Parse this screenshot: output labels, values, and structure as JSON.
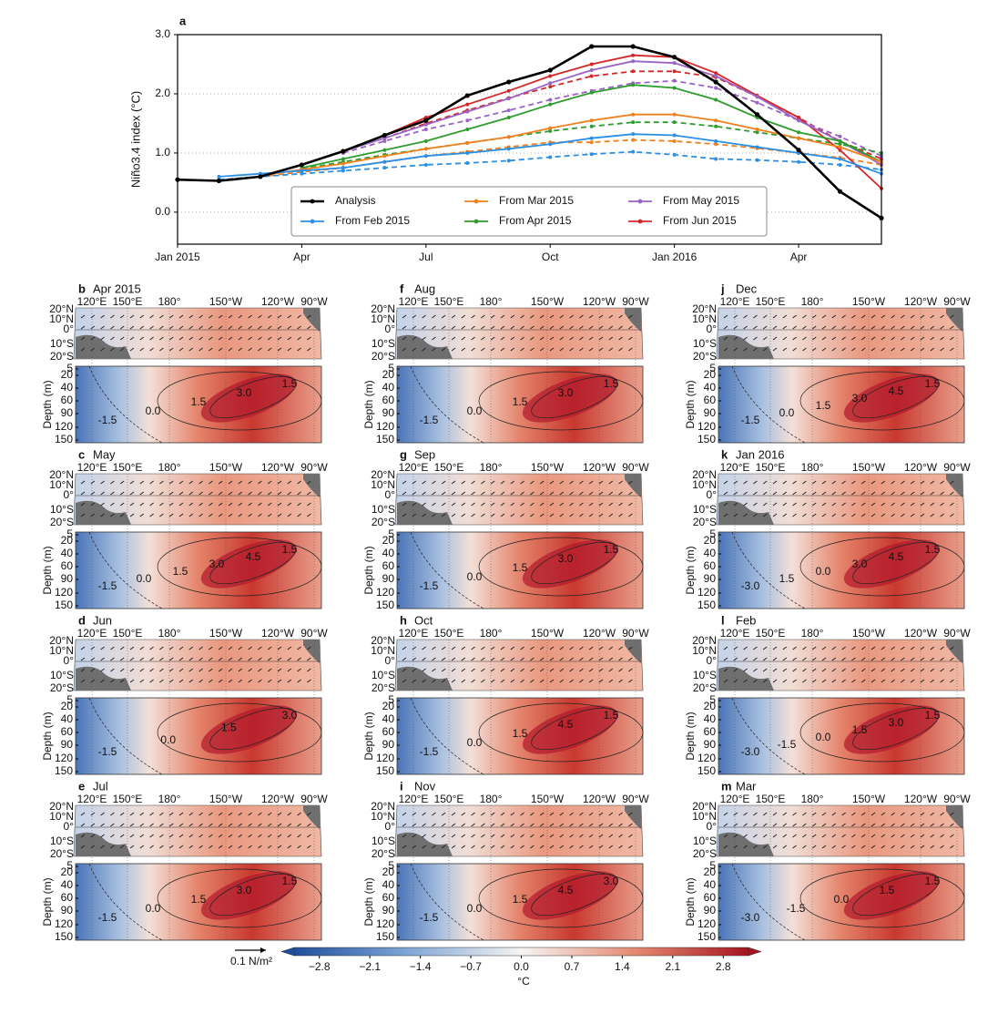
{
  "chart_data": {
    "type": "line",
    "panel_label": "a",
    "ylabel": "Niño3.4 index (°C)",
    "categories": [
      "Jan 2015",
      null,
      null,
      "Apr",
      null,
      null,
      "Jul",
      null,
      null,
      "Oct",
      null,
      null,
      "Jan 2016",
      null,
      null,
      "Apr",
      null,
      null
    ],
    "ylim": [
      -0.54,
      3.0
    ],
    "yticks": [
      {
        "value": 0,
        "label": "0.0"
      },
      {
        "value": 1,
        "label": "1.0"
      },
      {
        "value": 2,
        "label": "2.0"
      },
      {
        "value": 3,
        "label": "3.0"
      }
    ],
    "grid": true,
    "series": [
      {
        "name": "Analysis",
        "color": "#000000",
        "values": [
          0.55,
          0.53,
          0.6,
          0.8,
          1.03,
          1.3,
          1.55,
          1.97,
          2.2,
          2.4,
          2.8,
          2.8,
          2.62,
          2.2,
          1.65,
          1.05,
          0.35,
          -0.1
        ]
      },
      {
        "name": "From Feb 2015",
        "color": "#2b8fe6",
        "values": [
          null,
          0.6,
          0.65,
          0.7,
          0.75,
          0.85,
          0.95,
          1.0,
          1.07,
          1.15,
          1.25,
          1.32,
          1.3,
          1.2,
          1.1,
          1.0,
          0.9,
          0.65
        ]
      },
      {
        "name": "From Mar 2015",
        "color": "#f07f1c",
        "values": [
          null,
          null,
          0.62,
          0.72,
          0.82,
          0.95,
          1.07,
          1.17,
          1.27,
          1.42,
          1.55,
          1.65,
          1.65,
          1.55,
          1.4,
          1.25,
          1.1,
          0.85
        ]
      },
      {
        "name": "From Apr 2015",
        "color": "#2e9c2e",
        "values": [
          null,
          null,
          null,
          0.75,
          0.9,
          1.05,
          1.2,
          1.4,
          1.6,
          1.82,
          2.02,
          2.15,
          2.1,
          1.9,
          1.6,
          1.35,
          1.2,
          0.85
        ]
      },
      {
        "name": "From May 2015",
        "color": "#9a63c6",
        "values": [
          null,
          null,
          null,
          null,
          1.03,
          1.25,
          1.48,
          1.7,
          1.92,
          2.18,
          2.4,
          2.55,
          2.52,
          2.3,
          1.95,
          1.55,
          1.2,
          0.8
        ]
      },
      {
        "name": "From Jun 2015",
        "color": "#d62728",
        "values": [
          null,
          null,
          null,
          null,
          null,
          1.3,
          1.6,
          1.82,
          2.05,
          2.3,
          2.5,
          2.65,
          2.62,
          2.35,
          1.97,
          1.6,
          1.05,
          0.4
        ]
      },
      {
        "color": "#2b8fe6",
        "dashed": true,
        "values": [
          null,
          0.55,
          0.6,
          0.65,
          0.7,
          0.75,
          0.8,
          0.83,
          0.87,
          0.93,
          0.98,
          1.02,
          0.97,
          0.9,
          0.88,
          0.85,
          0.8,
          0.72
        ]
      },
      {
        "color": "#f07f1c",
        "dashed": true,
        "values": [
          null,
          null,
          0.6,
          0.68,
          0.75,
          0.85,
          0.95,
          1.02,
          1.1,
          1.18,
          1.18,
          1.22,
          1.2,
          1.15,
          1.08,
          1.0,
          0.92,
          0.8
        ]
      },
      {
        "color": "#2e9c2e",
        "dashed": true,
        "values": [
          null,
          null,
          null,
          0.73,
          0.85,
          0.97,
          1.07,
          1.17,
          1.27,
          1.37,
          1.45,
          1.52,
          1.52,
          1.45,
          1.35,
          1.25,
          1.15,
          1.0
        ]
      },
      {
        "color": "#9a63c6",
        "dashed": true,
        "values": [
          null,
          null,
          null,
          null,
          1.0,
          1.2,
          1.4,
          1.55,
          1.72,
          1.9,
          2.05,
          2.18,
          2.22,
          2.1,
          1.85,
          1.55,
          1.28,
          0.95
        ]
      },
      {
        "color": "#d62728",
        "dashed": true,
        "values": [
          null,
          null,
          null,
          null,
          null,
          1.25,
          1.5,
          1.72,
          1.93,
          2.12,
          2.3,
          2.38,
          2.38,
          2.28,
          1.95,
          1.6,
          1.2,
          0.9
        ]
      }
    ]
  },
  "maps": {
    "lon_ticks": [
      "120°E",
      "150°E",
      "180°",
      "150°W",
      "120°W",
      "90°W"
    ],
    "lat_ticks": [
      "20°N",
      "10°N",
      "0°",
      "10°S",
      "20°S"
    ],
    "depth_label": "Depth (m)",
    "depth_ticks": [
      5,
      20,
      40,
      60,
      90,
      120,
      150
    ],
    "panels": [
      {
        "letter": "b",
        "title": "Apr 2015",
        "contours": [
          "-1.5",
          "0.0",
          "1.5",
          "3.0",
          "1.5"
        ]
      },
      {
        "letter": "c",
        "title": "May",
        "contours": [
          "-1.5",
          "0.0",
          "1.5",
          "3.0",
          "4.5",
          "1.5"
        ]
      },
      {
        "letter": "d",
        "title": "Jun",
        "contours": [
          "-1.5",
          "0.0",
          "1.5",
          "3.0"
        ]
      },
      {
        "letter": "e",
        "title": "Jul",
        "contours": [
          "-1.5",
          "0.0",
          "1.5",
          "3.0",
          "1.5"
        ]
      },
      {
        "letter": "f",
        "title": "Aug",
        "contours": [
          "-1.5",
          "0.0",
          "1.5",
          "3.0",
          "1.5"
        ]
      },
      {
        "letter": "g",
        "title": "Sep",
        "contours": [
          "-1.5",
          "0.0",
          "1.5",
          "3.0",
          "1.5"
        ]
      },
      {
        "letter": "h",
        "title": "Oct",
        "contours": [
          "-1.5",
          "0.0",
          "1.5",
          "4.5",
          "1.5"
        ]
      },
      {
        "letter": "i",
        "title": "Nov",
        "contours": [
          "-1.5",
          "0.0",
          "1.5",
          "4.5",
          "3.0"
        ]
      },
      {
        "letter": "j",
        "title": "Dec",
        "contours": [
          "-1.5",
          "0.0",
          "1.5",
          "3.0",
          "4.5",
          "1.5"
        ]
      },
      {
        "letter": "k",
        "title": "Jan 2016",
        "contours": [
          "-3.0",
          "1.5",
          "0.0",
          "3.0",
          "4.5",
          "1.5"
        ]
      },
      {
        "letter": "l",
        "title": "Feb",
        "contours": [
          "-3.0",
          "-1.5",
          "0.0",
          "1.5",
          "3.0",
          "1.5"
        ]
      },
      {
        "letter": "m",
        "title": "Mar",
        "contours": [
          "-3.0",
          "-1.5",
          "0.0",
          "1.5",
          "1.5"
        ]
      }
    ]
  },
  "colorbar": {
    "lim": [
      -3.15,
      3.15
    ],
    "label": "°C",
    "ticks": [
      {
        "value": -2.8,
        "label": "−2.8"
      },
      {
        "value": -2.1,
        "label": "−2.1"
      },
      {
        "value": -1.4,
        "label": "−1.4"
      },
      {
        "value": -0.7,
        "label": "−0.7"
      },
      {
        "value": 0,
        "label": "0.0"
      },
      0.7,
      1.4,
      2.1,
      2.8
    ]
  },
  "wind_key": "0.1 N/m²"
}
